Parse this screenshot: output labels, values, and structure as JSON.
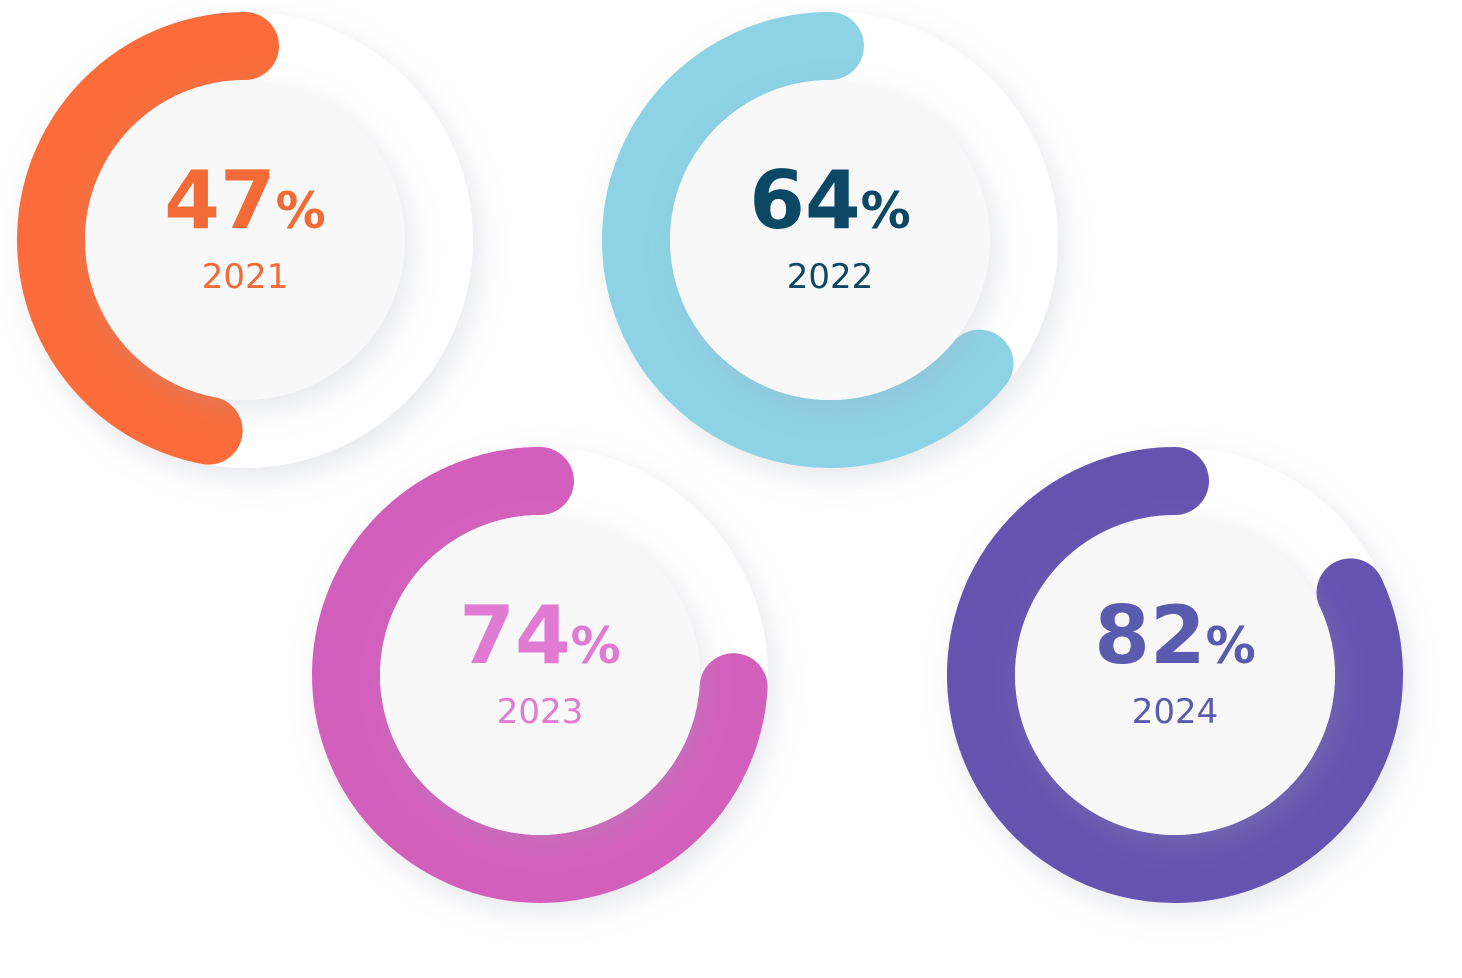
{
  "chart_data": {
    "type": "progress-ring",
    "categories": [
      "2021",
      "2022",
      "2023",
      "2024"
    ],
    "values": [
      47,
      64,
      74,
      82
    ],
    "value_labels": [
      "47%",
      "64%",
      "74%",
      "82%"
    ],
    "colors": [
      "#fb6c3a",
      "#8dd2e5",
      "#d35fbc",
      "#6553b0"
    ],
    "text_colors": [
      "#f26a35",
      "#0c4864",
      "#e07ad2",
      "#5a5bae"
    ],
    "ylim": [
      0,
      100
    ]
  }
}
